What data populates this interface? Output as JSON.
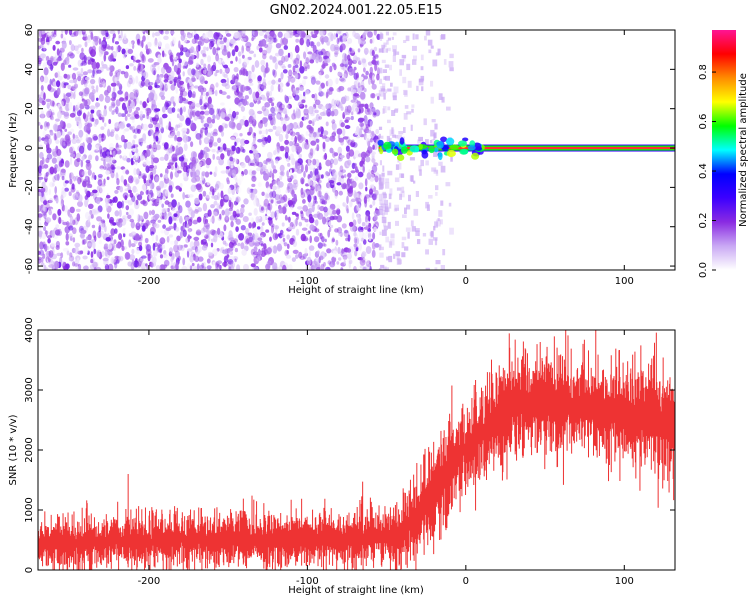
{
  "title": "GN02.2024.001.22.05.E15",
  "chart_data": [
    {
      "type": "heatmap",
      "xlabel": "Height of straight line (km)",
      "ylabel": "Frequency (Hz)",
      "xlim": [
        -270,
        132
      ],
      "ylim": [
        -62,
        60
      ],
      "xticks": [
        -200,
        -100,
        0,
        100
      ],
      "yticks": [
        -60,
        -40,
        -20,
        0,
        20,
        40,
        60
      ],
      "grid": false,
      "features": {
        "noise_region_x": [
          -270,
          -55
        ],
        "noise_fade_x": [
          -55,
          -35
        ],
        "noise_amplitude_range": [
          0.0,
          0.2
        ],
        "line_frequency_hz": 0,
        "line_start_x": -55,
        "line_end_x": 132,
        "line_core_amplitude": 0.95
      },
      "colorbar": {
        "label": "Normalized spectral amplitude",
        "range": [
          0.0,
          0.97
        ],
        "ticks": [
          0.0,
          0.2,
          0.4,
          0.6,
          0.8
        ],
        "colormap": [
          "#ffffff",
          "#c9a8f4",
          "#8a2be2",
          "#3c00ff",
          "#0000ff",
          "#00ffff",
          "#00ff00",
          "#ffff00",
          "#ff8c00",
          "#ff0000",
          "#ff1493"
        ]
      }
    },
    {
      "type": "area",
      "xlabel": "Height of straight line (km)",
      "ylabel": "SNR (10 * v/v)",
      "xlim": [
        -270,
        132
      ],
      "ylim": [
        0,
        4000
      ],
      "xticks": [
        -200,
        -100,
        0,
        100
      ],
      "yticks": [
        0,
        1000,
        2000,
        3000,
        4000
      ],
      "grid": false,
      "color": "#ee3333",
      "series": [
        {
          "x": [
            -270,
            -250,
            -230,
            -210,
            -200,
            -190,
            -170,
            -150,
            -130,
            -110,
            -90,
            -70,
            -55,
            -45,
            -38,
            -30,
            -25,
            -20,
            -15,
            -10,
            -5,
            0,
            5,
            10,
            15,
            20,
            25,
            30,
            40,
            50,
            60,
            70,
            80,
            90,
            100,
            110,
            120,
            125,
            132
          ],
          "y": [
            450,
            460,
            470,
            480,
            480,
            490,
            500,
            500,
            500,
            510,
            520,
            520,
            520,
            540,
            700,
            900,
            1100,
            1300,
            1500,
            1700,
            1850,
            2000,
            2150,
            2300,
            2450,
            2550,
            2650,
            2700,
            2750,
            2780,
            2760,
            2720,
            2700,
            2650,
            2620,
            2580,
            2500,
            2400,
            2350
          ],
          "spread": [
            350,
            360,
            360,
            370,
            380,
            380,
            380,
            380,
            380,
            380,
            380,
            380,
            380,
            400,
            550,
            650,
            700,
            700,
            650,
            600,
            600,
            600,
            620,
            650,
            680,
            700,
            720,
            720,
            720,
            720,
            720,
            700,
            700,
            700,
            700,
            700,
            720,
            740,
            750
          ]
        }
      ]
    }
  ]
}
